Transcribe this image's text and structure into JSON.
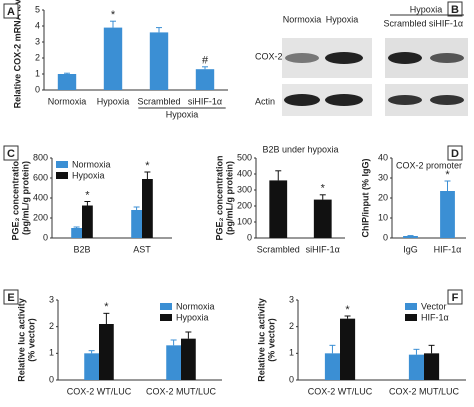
{
  "chart_data": [
    {
      "type": "bar",
      "panel": "A",
      "ylabel": [
        "Relative COX-2 mRNA level"
      ],
      "categories": [
        "Normoxia",
        "Hypoxia",
        "Scrambled",
        "siHIF-1α"
      ],
      "series": [
        {
          "color": "#3b8fd4",
          "values": [
            1.0,
            3.9,
            3.6,
            1.3
          ],
          "errors": [
            0.05,
            0.4,
            0.3,
            0.15
          ]
        }
      ],
      "annotations": [
        {
          "series": 0,
          "category": 1,
          "text": "*"
        },
        {
          "series": 0,
          "category": 3,
          "text": "#"
        }
      ],
      "group_labels": [
        {
          "text": "Hypoxia",
          "categories": [
            2,
            3
          ]
        }
      ],
      "ylim": [
        0,
        5
      ],
      "yticks": [
        0,
        1,
        2,
        3,
        4,
        5
      ]
    },
    {
      "type": "bar",
      "panel": "C",
      "ylabel": [
        "PGE₂ concentration",
        "(pg/mL/g protein)"
      ],
      "categories": [
        "B2B",
        "AST"
      ],
      "series": [
        {
          "name": "Normoxia",
          "color": "#3b8fd4",
          "values": [
            100,
            280
          ],
          "errors": [
            10,
            30
          ]
        },
        {
          "name": "Hypoxia",
          "color": "#111111",
          "values": [
            325,
            590
          ],
          "errors": [
            40,
            70
          ]
        }
      ],
      "annotations": [
        {
          "series": 1,
          "category": 0,
          "text": "*"
        },
        {
          "series": 1,
          "category": 1,
          "text": "*"
        }
      ],
      "legend": "top-left",
      "ylim": [
        0,
        800
      ],
      "yticks": [
        0,
        200,
        400,
        600,
        800
      ]
    },
    {
      "type": "bar",
      "title": "B2B under hypoxia",
      "ylabel": [
        "PGE₂ concentration",
        "(pg/mL/g protein)"
      ],
      "categories": [
        "Scrambled",
        "siHIF-1α"
      ],
      "series": [
        {
          "color": "#111111",
          "values": [
            360,
            240
          ],
          "errors": [
            60,
            30
          ]
        }
      ],
      "annotations": [
        {
          "series": 0,
          "category": 1,
          "text": "*"
        }
      ],
      "ylim": [
        0,
        500
      ],
      "yticks": [
        0,
        100,
        200,
        300,
        400,
        500
      ]
    },
    {
      "type": "bar",
      "panel": "D",
      "title": "COX-2 promoter",
      "ylabel": [
        "ChIP/input (% IgG)"
      ],
      "categories": [
        "IgG",
        "HIF-1α"
      ],
      "series": [
        {
          "color": "#3b8fd4",
          "values": [
            1,
            23.5
          ],
          "errors": [
            0.2,
            5
          ]
        }
      ],
      "annotations": [
        {
          "series": 0,
          "category": 1,
          "text": "*"
        }
      ],
      "ylim": [
        0,
        40
      ],
      "yticks": [
        0,
        10,
        20,
        30,
        40
      ]
    },
    {
      "type": "bar",
      "panel": "E",
      "ylabel": [
        "Relative luc activity",
        "(% vector)"
      ],
      "categories": [
        "COX-2 WT/LUC",
        "COX-2 MUT/LUC"
      ],
      "series": [
        {
          "name": "Normoxia",
          "color": "#3b8fd4",
          "values": [
            1.0,
            1.3
          ],
          "errors": [
            0.1,
            0.2
          ]
        },
        {
          "name": "Hypoxia",
          "color": "#111111",
          "values": [
            2.1,
            1.55
          ],
          "errors": [
            0.4,
            0.25
          ]
        }
      ],
      "annotations": [
        {
          "series": 1,
          "category": 0,
          "text": "*"
        }
      ],
      "legend": "top-right",
      "ylim": [
        0,
        3
      ],
      "yticks": [
        0,
        1,
        2,
        3
      ]
    },
    {
      "type": "bar",
      "panel": "F",
      "ylabel": [
        "Relative luc activity",
        "(% vector)"
      ],
      "categories": [
        "COX-2 WT/LUC",
        "COX-2 MUT/LUC"
      ],
      "series": [
        {
          "name": "Vector",
          "color": "#3b8fd4",
          "values": [
            1.0,
            0.95
          ],
          "errors": [
            0.3,
            0.2
          ]
        },
        {
          "name": "HIF-1α",
          "color": "#111111",
          "values": [
            2.3,
            1.0
          ],
          "errors": [
            0.1,
            0.3
          ]
        }
      ],
      "annotations": [
        {
          "series": 1,
          "category": 0,
          "text": "*"
        }
      ],
      "legend": "top-right",
      "ylim": [
        0,
        3
      ],
      "yticks": [
        0,
        1,
        2,
        3
      ]
    }
  ],
  "blot": {
    "panel": "B",
    "lanes": [
      "Normoxia",
      "Hypoxia",
      "Scrambled",
      "siHIF-1α"
    ],
    "group_label": "Hypoxia",
    "rows": [
      "COX-2",
      "Actin"
    ]
  }
}
